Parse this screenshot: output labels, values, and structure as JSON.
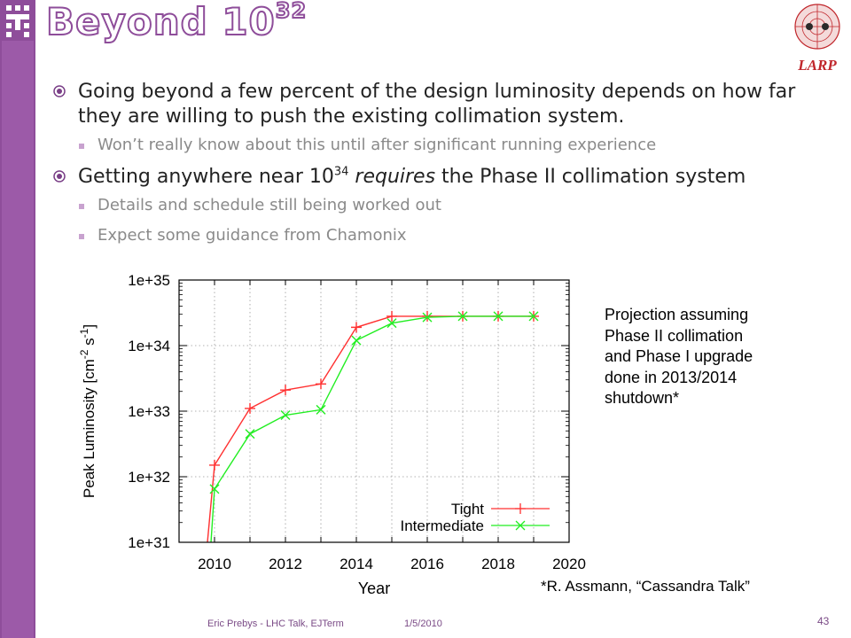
{
  "slide": {
    "title": "Beyond 10",
    "title_exp": "32",
    "brand": "LARP",
    "accent": "#8e4d9a"
  },
  "bullets": [
    {
      "level": 1,
      "text": "Going beyond a few percent of the design luminosity depends on how far they are willing to push the existing collimation system."
    },
    {
      "level": 2,
      "text": "Won’t really know about this until after significant running experience"
    },
    {
      "level": 1,
      "pre": "Getting anywhere near 10",
      "exp": "34",
      "em": "requires",
      "post": " the Phase II collimation system"
    },
    {
      "level": 2,
      "text": "Details and schedule still being worked out"
    },
    {
      "level": 2,
      "text": "Expect some guidance from Chamonix"
    }
  ],
  "note": "Projection assuming\nPhase II collimation\nand Phase I upgrade\ndone in 2013/2014\nshutdown*",
  "citation": "*R. Assmann, “Cassandra Talk”",
  "footer": {
    "author": "Eric Prebys - LHC Talk, EJTerm",
    "date": "1/5/2010",
    "page": "43"
  },
  "chart_data": {
    "type": "line",
    "xlabel": "Year",
    "ylabel": "Peak Luminosity [cm-2 s-1]",
    "ylabel_parts": {
      "a": "Peak Luminosity [cm",
      "b": "-2",
      "c": " s",
      "d": "-1",
      "e": "]"
    },
    "xlim": [
      2009,
      2020
    ],
    "ylim": [
      1e+31,
      1e+35
    ],
    "yscale": "log",
    "xticks": [
      2010,
      2012,
      2014,
      2016,
      2018,
      2020
    ],
    "yticks": [
      {
        "v": 1e+31,
        "label": "1e+31"
      },
      {
        "v": 1e+32,
        "label": "1e+32"
      },
      {
        "v": 1e+33,
        "label": "1e+33"
      },
      {
        "v": 1e+34,
        "label": "1e+34"
      },
      {
        "v": 1e+35,
        "label": "1e+35"
      }
    ],
    "grid": true,
    "legend_position": "bottom-right",
    "series": [
      {
        "name": "Tight",
        "color": "#ff3030",
        "marker": "plus",
        "x": [
          2009.8,
          2010,
          2011,
          2012,
          2013,
          2014,
          2015,
          2016,
          2017,
          2018,
          2019
        ],
        "y": [
          1e+31,
          1.5e+32,
          1.1e+33,
          2.1e+33,
          2.6e+33,
          1.9e+34,
          2.8e+34,
          2.8e+34,
          2.8e+34,
          2.8e+34,
          2.8e+34
        ]
      },
      {
        "name": "Intermediate",
        "color": "#22ee22",
        "marker": "x",
        "x": [
          2009.9,
          2010,
          2011,
          2012,
          2013,
          2014,
          2015,
          2016,
          2017,
          2018,
          2019
        ],
        "y": [
          1e+31,
          6.5e+31,
          4.5e+32,
          8.7e+32,
          1.05e+33,
          1.2e+34,
          2.2e+34,
          2.7e+34,
          2.8e+34,
          2.8e+34,
          2.8e+34
        ]
      }
    ]
  }
}
